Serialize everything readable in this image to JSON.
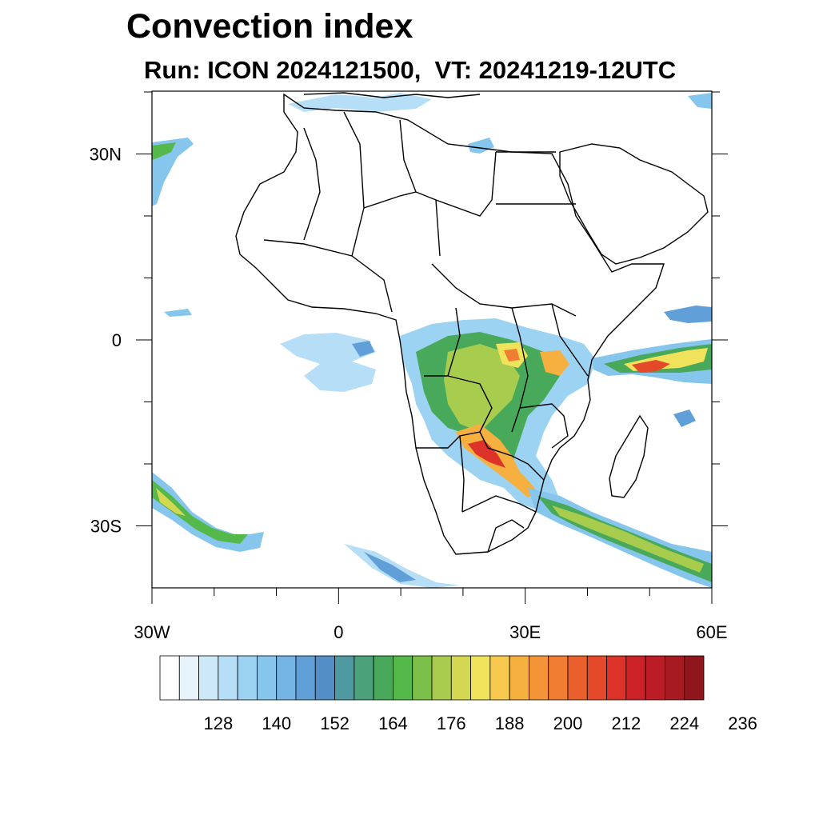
{
  "title": "Convection index",
  "subtitle": "Run: ICON 2024121500,  VT: 20241219-12UTC",
  "map": {
    "projection": "lon-lat",
    "lon_range": [
      -30,
      60
    ],
    "lat_range": [
      -40,
      40
    ],
    "lat_labels": [
      {
        "value": 30,
        "text": "30N"
      },
      {
        "value": 0,
        "text": "0"
      },
      {
        "value": -30,
        "text": "30S"
      }
    ],
    "lon_labels": [
      {
        "value": -30,
        "text": "30W"
      },
      {
        "value": 0,
        "text": "0"
      },
      {
        "value": 30,
        "text": "30E"
      },
      {
        "value": 60,
        "text": "60E"
      }
    ],
    "coastline_color": "#000000"
  },
  "colorbar": {
    "colors": [
      "#ffffff",
      "#e6f3fb",
      "#cde9f8",
      "#b6def6",
      "#9dd3f2",
      "#86c5ec",
      "#75b5e5",
      "#609fd8",
      "#538fc6",
      "#4f9aa0",
      "#4aa17a",
      "#48a95a",
      "#55b84a",
      "#7cc04a",
      "#a8cc4e",
      "#d3d751",
      "#f0e35b",
      "#f7ca4f",
      "#f5b040",
      "#f39537",
      "#f07d31",
      "#ea602c",
      "#e44a2a",
      "#dc3229",
      "#cc2227",
      "#bb1c25",
      "#a81a22",
      "#8f161c"
    ],
    "labels": [
      "128",
      "140",
      "152",
      "164",
      "176",
      "188",
      "200",
      "212",
      "224",
      "236"
    ]
  }
}
